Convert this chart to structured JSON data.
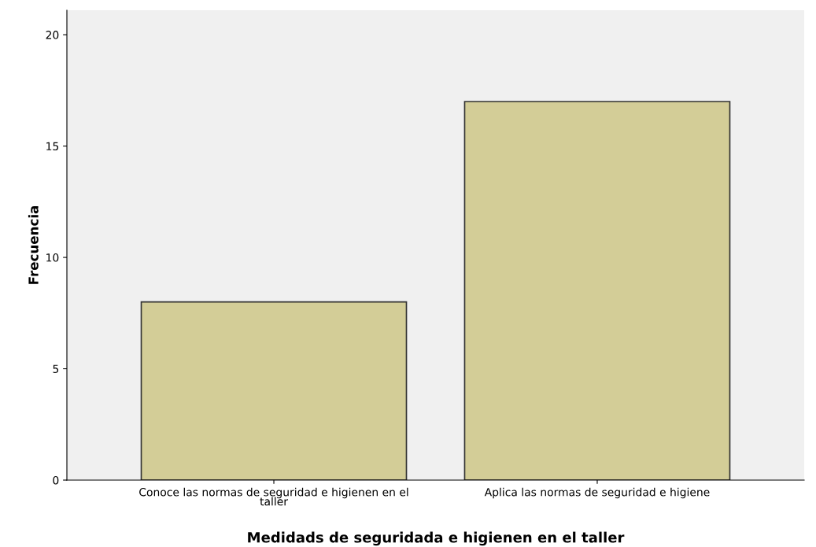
{
  "chart_data": {
    "type": "bar",
    "xlabel": "Medidads de seguridada e higienen en el taller",
    "ylabel": "Frecuencia",
    "categories": [
      "Conoce las normas de seguridad e higienen en el\ntaller",
      "Aplica las normas de seguridad e higiene"
    ],
    "values": [
      8,
      17
    ],
    "color": "#d3cd97",
    "ylim": [
      0,
      21.1
    ],
    "yticks": [
      0,
      5,
      10,
      15,
      20
    ],
    "grid": false,
    "legend": false
  }
}
